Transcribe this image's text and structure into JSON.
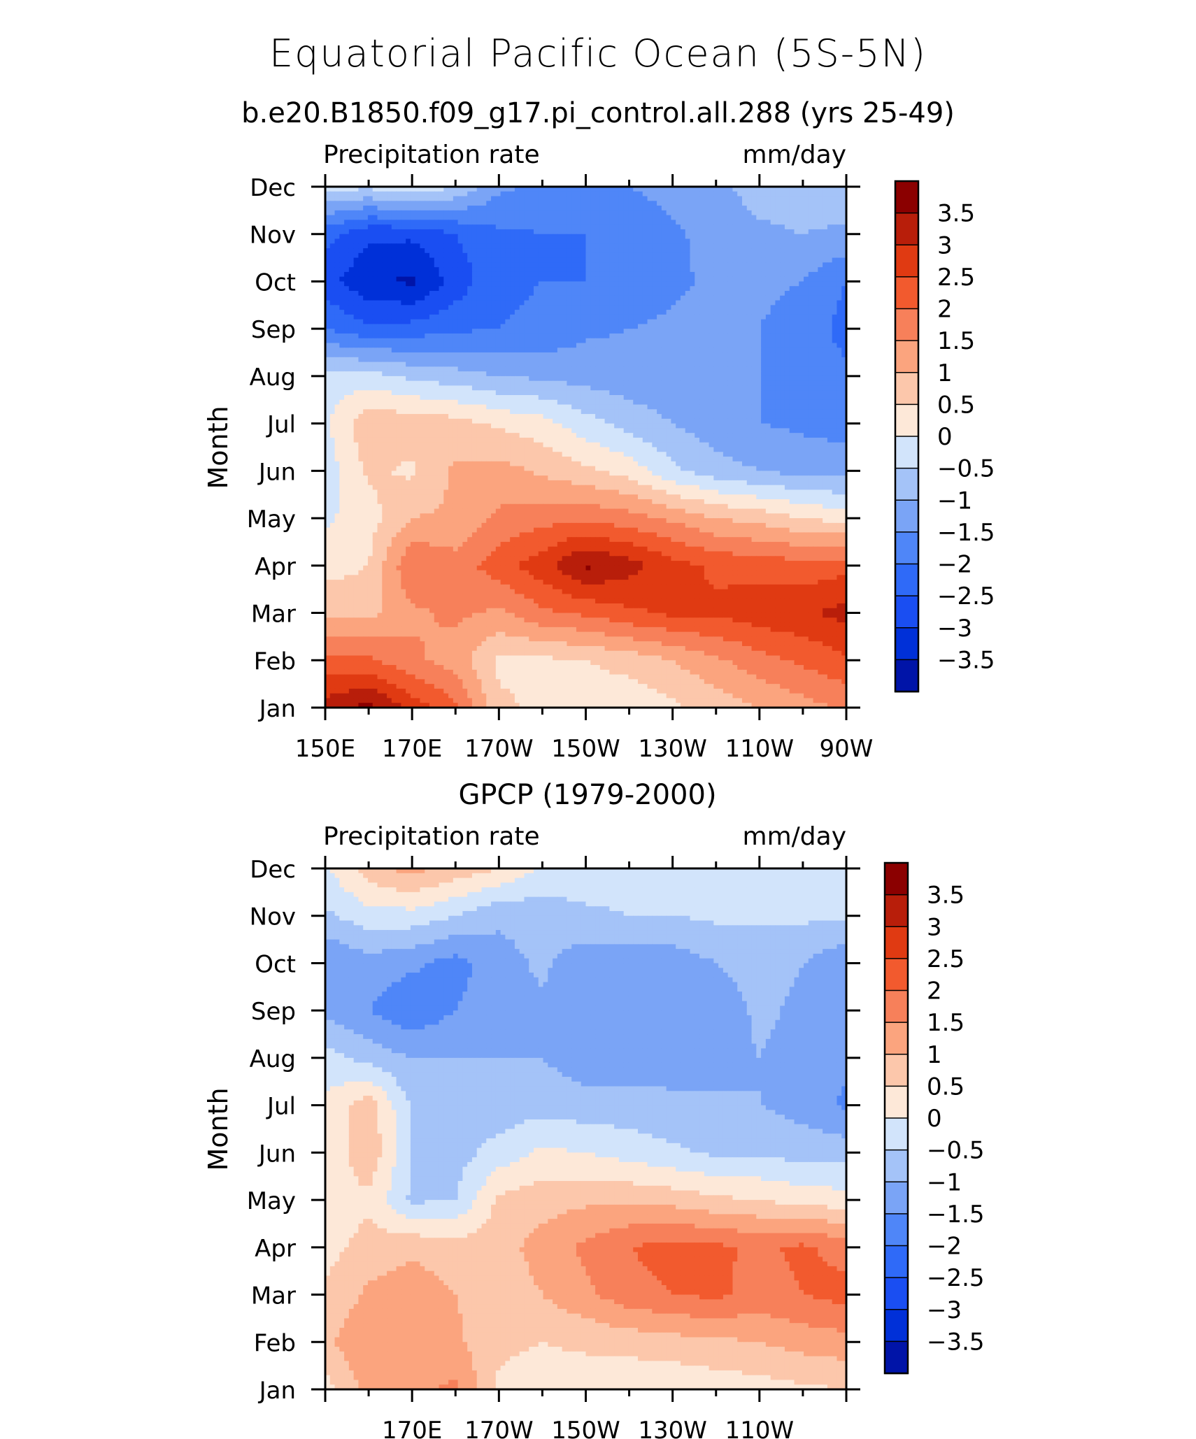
{
  "page": {
    "title": "Equatorial Pacific Ocean (5S-5N)"
  },
  "palette": [
    "#00007f",
    "#0014a8",
    "#0030d8",
    "#1a4ef2",
    "#2f6af8",
    "#4f86f8",
    "#7aa4f6",
    "#a4c3f8",
    "#d2e4fb",
    "#fde8d8",
    "#fcc7ab",
    "#fba47e",
    "#f7805a",
    "#f25a2e",
    "#e03a12",
    "#b81e0a",
    "#8b0000"
  ],
  "chart_data": [
    {
      "type": "heatmap",
      "title": "b.e20.B1850.f09_g17.pi_control.all.288 (yrs 25-49)",
      "left_label": "Precipitation rate",
      "right_label": "mm/day",
      "ylabel": "Month",
      "xlabel": "",
      "x_tick_labels": [
        "150E",
        "170E",
        "170W",
        "150W",
        "130W",
        "110W",
        "90W"
      ],
      "y_tick_labels": [
        "Jan",
        "Feb",
        "Mar",
        "Apr",
        "May",
        "Jun",
        "Jul",
        "Aug",
        "Sep",
        "Oct",
        "Nov",
        "Dec"
      ],
      "x_columns": [
        "150E",
        "160E",
        "170E",
        "180",
        "170W",
        "160W",
        "150W",
        "140W",
        "130W",
        "120W",
        "110W",
        "100W",
        "90W"
      ],
      "z_levels": [
        -3.5,
        -3,
        -2.5,
        -2,
        -1.5,
        -1,
        -0.5,
        0,
        0.5,
        1,
        1.5,
        2,
        2.5,
        3,
        3.5
      ],
      "colorbar_labels": [
        "3.5",
        "3",
        "2.5",
        "2",
        "1.5",
        "1",
        "0.5",
        "0",
        "-0.5",
        "-1",
        "-1.5",
        "-2",
        "-2.5",
        "-3",
        "-3.5"
      ],
      "values": [
        [
          3.2,
          3.7,
          2.8,
          2.1,
          0.6,
          0.4,
          0.2,
          0.1,
          0.4,
          0.7,
          1.0,
          1.3,
          1.6
        ],
        [
          2.2,
          2.1,
          1.6,
          1.3,
          0.4,
          0.4,
          0.5,
          0.7,
          1.0,
          1.4,
          1.8,
          2.1,
          2.4
        ],
        [
          0.9,
          0.8,
          1.4,
          1.6,
          1.4,
          1.9,
          2.1,
          2.4,
          2.6,
          2.6,
          2.8,
          2.9,
          3.2
        ],
        [
          0.3,
          0.5,
          2.0,
          1.7,
          2.3,
          2.8,
          3.6,
          3.2,
          2.7,
          2.4,
          2.3,
          2.2,
          2.3
        ],
        [
          -0.1,
          0.3,
          1.0,
          1.1,
          1.6,
          1.8,
          1.9,
          1.7,
          1.4,
          1.0,
          0.8,
          0.5,
          0.3
        ],
        [
          -0.3,
          0.6,
          0.4,
          1.1,
          1.2,
          0.9,
          0.6,
          0.3,
          -0.4,
          -0.8,
          -1.0,
          -1.2,
          -1.2
        ],
        [
          -0.1,
          0.9,
          0.8,
          0.7,
          0.4,
          0.2,
          -0.3,
          -0.7,
          -1.0,
          -1.3,
          -1.5,
          -1.6,
          -1.7
        ],
        [
          -0.3,
          -0.3,
          -0.6,
          -0.8,
          -1.0,
          -1.1,
          -1.2,
          -1.3,
          -1.4,
          -1.4,
          -1.5,
          -1.6,
          -1.9
        ],
        [
          -2.0,
          -2.4,
          -2.3,
          -2.1,
          -2.0,
          -1.9,
          -1.6,
          -1.5,
          -1.4,
          -1.4,
          -1.5,
          -1.7,
          -2.2
        ],
        [
          -2.8,
          -3.4,
          -3.6,
          -2.8,
          -2.1,
          -2.0,
          -2.0,
          -1.9,
          -1.6,
          -1.4,
          -1.4,
          -1.5,
          -2.0
        ],
        [
          -2.3,
          -2.9,
          -2.9,
          -2.5,
          -2.1,
          -2.0,
          -2.0,
          -1.9,
          -1.6,
          -1.3,
          -1.1,
          -1.0,
          -1.1
        ],
        [
          -0.3,
          -0.4,
          -0.1,
          -0.5,
          -1.4,
          -1.6,
          -1.6,
          -1.5,
          -1.3,
          -1.1,
          -0.8,
          -0.7,
          -0.7
        ]
      ]
    },
    {
      "type": "heatmap",
      "title": "GPCP (1979-2000)",
      "left_label": "Precipitation rate",
      "right_label": "mm/day",
      "ylabel": "Month",
      "xlabel": "",
      "x_tick_labels": [
        "",
        "170E",
        "170W",
        "150W",
        "130W",
        "110W",
        ""
      ],
      "y_tick_labels": [
        "Jan",
        "Feb",
        "Mar",
        "Apr",
        "May",
        "Jun",
        "Jul",
        "Aug",
        "Sep",
        "Oct",
        "Nov",
        "Dec"
      ],
      "x_columns": [
        "150E",
        "160E",
        "170E",
        "180",
        "170W",
        "160W",
        "150W",
        "140W",
        "130W",
        "120W",
        "110W",
        "100W",
        "90W"
      ],
      "z_levels": [
        -3.5,
        -3,
        -2.5,
        -2,
        -1.5,
        -1,
        -0.5,
        0,
        0.5,
        1,
        1.5,
        2,
        2.5,
        3,
        3.5
      ],
      "colorbar_labels": [
        "3.5",
        "3",
        "2.5",
        "2",
        "1.5",
        "1",
        "0.5",
        "0",
        "-0.5",
        "-1",
        "-1.5",
        "-2",
        "-2.5",
        "-3",
        "-3.5"
      ],
      "values": [
        [
          0.3,
          1.2,
          1.4,
          1.6,
          0.4,
          0.3,
          0.2,
          0.1,
          0.1,
          0.2,
          0.3,
          0.4,
          0.5
        ],
        [
          0.9,
          1.4,
          1.2,
          1.1,
          0.6,
          0.5,
          0.6,
          0.7,
          0.8,
          0.9,
          1.0,
          1.2,
          1.3
        ],
        [
          0.6,
          1.1,
          1.3,
          1.0,
          0.7,
          1.0,
          1.4,
          1.8,
          2.0,
          2.1,
          1.8,
          2.0,
          2.2
        ],
        [
          0.3,
          0.7,
          0.9,
          0.7,
          0.8,
          1.2,
          1.6,
          2.0,
          2.2,
          2.1,
          1.9,
          2.1,
          1.8
        ],
        [
          0.2,
          0.4,
          -0.6,
          -0.5,
          0.6,
          0.8,
          0.9,
          0.9,
          0.8,
          0.6,
          0.5,
          0.3,
          0.2
        ],
        [
          0.1,
          0.9,
          -0.5,
          -0.7,
          -0.3,
          0.1,
          0.0,
          -0.2,
          -0.4,
          -0.6,
          -0.6,
          -0.7,
          -0.7
        ],
        [
          0.1,
          0.8,
          -0.6,
          -0.8,
          -0.8,
          -0.7,
          -0.8,
          -0.8,
          -0.9,
          -0.9,
          -1.0,
          -1.2,
          -1.6
        ],
        [
          -0.3,
          -0.7,
          -1.0,
          -1.0,
          -1.0,
          -1.0,
          -1.3,
          -1.3,
          -1.2,
          -1.2,
          -1.0,
          -1.2,
          -1.4
        ],
        [
          -1.1,
          -1.5,
          -1.9,
          -1.5,
          -1.2,
          -1.1,
          -1.4,
          -1.5,
          -1.5,
          -1.3,
          -0.9,
          -1.1,
          -1.3
        ],
        [
          -1.5,
          -1.2,
          -1.4,
          -1.7,
          -1.2,
          -0.9,
          -1.3,
          -1.4,
          -1.3,
          -1.0,
          -0.8,
          -1.0,
          -1.4
        ],
        [
          -0.6,
          -0.2,
          -0.2,
          -0.5,
          -0.9,
          -0.8,
          -0.6,
          -0.5,
          -0.5,
          -0.4,
          -0.4,
          -0.4,
          -0.4
        ],
        [
          -0.1,
          0.8,
          1.2,
          0.8,
          0.5,
          -0.1,
          -0.2,
          -0.3,
          -0.2,
          -0.3,
          -0.3,
          -0.3,
          -0.3
        ]
      ]
    }
  ]
}
